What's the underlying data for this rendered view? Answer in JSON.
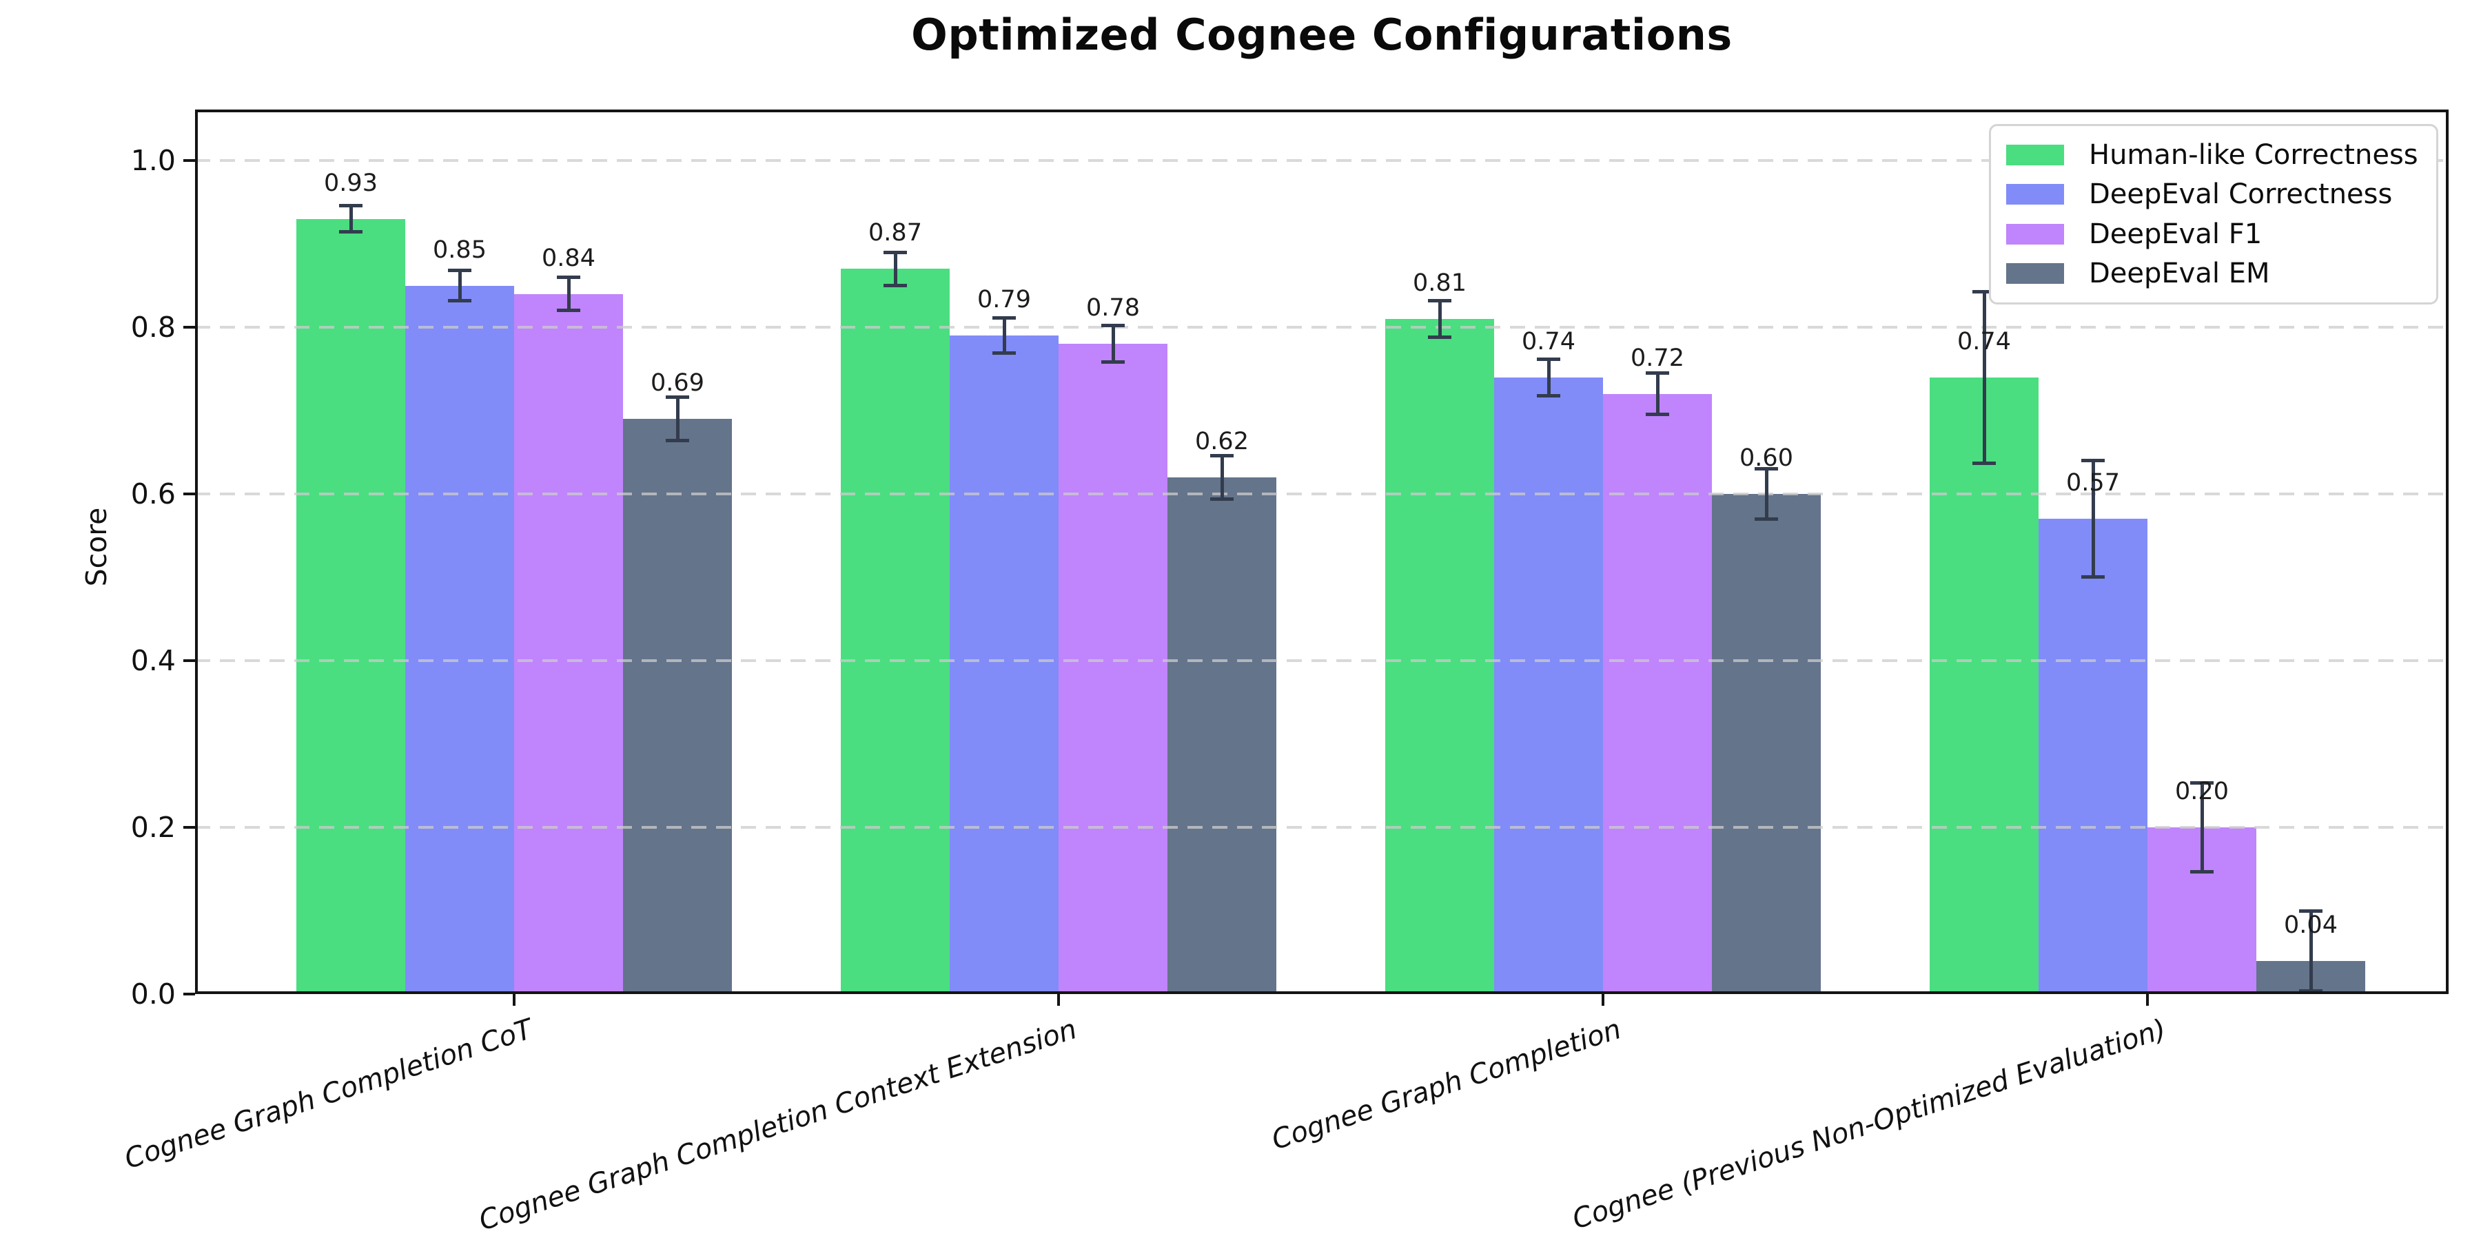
{
  "title": "Optimized Cognee Configurations",
  "y_axis_title": "Score",
  "chart_data": {
    "type": "bar",
    "title": "Optimized Cognee Configurations",
    "xlabel": "",
    "ylabel": "Score",
    "ylim": [
      0,
      1.06
    ],
    "grid": "horizontal dashed, drawn over bars",
    "legend_position": "upper right",
    "ytick_labels": [
      "0.0",
      "0.2",
      "0.4",
      "0.6",
      "0.8",
      "1.0"
    ],
    "yticks": [
      0.0,
      0.2,
      0.4,
      0.6,
      0.8,
      1.0
    ],
    "categories": [
      "Cognee Graph Completion CoT",
      "Cognee Graph Completion Context Extension",
      "Cognee Graph Completion",
      "Cognee (Previous Non-Optimized Evaluation)"
    ],
    "series": [
      {
        "name": "Human-like Correctness",
        "color": "#4ade80",
        "values": [
          0.93,
          0.87,
          0.81,
          0.74
        ],
        "errors": [
          0.018,
          0.022,
          0.024,
          0.105
        ],
        "value_labels": [
          "0.93",
          "0.87",
          "0.81",
          "0.74"
        ]
      },
      {
        "name": "DeepEval Correctness",
        "color": "#818cf8",
        "values": [
          0.85,
          0.79,
          0.74,
          0.57
        ],
        "errors": [
          0.02,
          0.023,
          0.024,
          0.072
        ],
        "value_labels": [
          "0.85",
          "0.79",
          "0.74",
          "0.57"
        ]
      },
      {
        "name": "DeepEval F1",
        "color": "#c084fc",
        "values": [
          0.84,
          0.78,
          0.72,
          0.2
        ],
        "errors": [
          0.022,
          0.024,
          0.027,
          0.055
        ],
        "value_labels": [
          "0.84",
          "0.78",
          "0.72",
          "0.20"
        ]
      },
      {
        "name": "DeepEval EM",
        "color": "#64748b",
        "values": [
          0.69,
          0.62,
          0.6,
          0.04
        ],
        "errors": [
          0.028,
          0.028,
          0.032,
          0.062
        ],
        "value_labels": [
          "0.69",
          "0.62",
          "0.60",
          "0.04"
        ]
      }
    ],
    "error_bar_color": "#323c4d",
    "gridline_color": "#cccccc"
  }
}
